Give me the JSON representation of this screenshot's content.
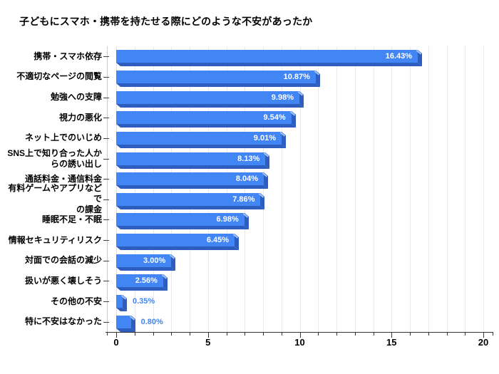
{
  "chart_data": {
    "type": "bar",
    "orientation": "horizontal",
    "title": "子どもにスマホ・携帯を持たせる際にどのような不安があったか",
    "categories": [
      "携帯・スマホ依存",
      "不適切なページの閲覧",
      "勉強への支障",
      "視力の悪化",
      "ネット上でのいじめ",
      "SNS上で知り合った人か\nらの誘い出し",
      "通話料金・通信料金",
      "有料ゲームやアプリなどで\nの課金",
      "睡眠不足・不眠",
      "情報セキュリティリスク",
      "対面での会話の減少",
      "扱いが悪く壊しそう",
      "その他の不安",
      "特に不安はなかった"
    ],
    "values": [
      16.43,
      10.87,
      9.98,
      9.54,
      9.01,
      8.13,
      8.04,
      7.86,
      6.98,
      6.45,
      3.0,
      2.56,
      0.35,
      0.8
    ],
    "value_labels": [
      "16.43%",
      "10.87%",
      "9.98%",
      "9.54%",
      "9.01%",
      "8.13%",
      "8.04%",
      "7.86%",
      "6.98%",
      "6.45%",
      "3.00%",
      "2.56%",
      "0.35%",
      "0.80%"
    ],
    "xlabel": "",
    "ylabel": "",
    "xlim": [
      0,
      20
    ],
    "x_major_ticks": [
      0,
      5,
      10,
      15,
      20
    ],
    "x_major_tick_labels": [
      "0",
      "5",
      "10",
      "15",
      "20"
    ],
    "x_minor_tick_step": 1,
    "grid": "vertical minor gridlines every 1 unit",
    "legend": "none",
    "colors": {
      "bar_face": "#4285F4",
      "bar_shade": "#2D5EBF",
      "bar_highlight": "#A6C6F9",
      "value_label_inside": "#FFFFFF",
      "value_label_outside": "#4285F4",
      "gridline": "#EAEAEA",
      "plot_edge_line": "#CCCCCC",
      "axis_line": "#333333",
      "tick": "#333333",
      "text": "#000000",
      "background": "#FFFFFF"
    }
  }
}
